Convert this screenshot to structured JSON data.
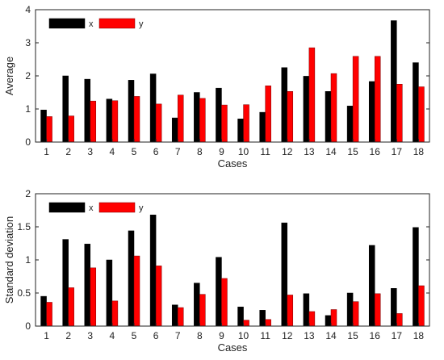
{
  "colors": {
    "x": "#000000",
    "y": "#ff0000",
    "y_stroke": "#7a0000"
  },
  "chart_data": [
    {
      "type": "bar",
      "categories": [
        "1",
        "2",
        "3",
        "4",
        "5",
        "6",
        "7",
        "8",
        "9",
        "10",
        "11",
        "12",
        "13",
        "14",
        "15",
        "16",
        "17",
        "18"
      ],
      "series": [
        {
          "name": "x",
          "values": [
            0.97,
            2.0,
            1.9,
            1.3,
            1.87,
            2.06,
            0.73,
            1.5,
            1.63,
            0.7,
            0.9,
            2.25,
            1.99,
            1.53,
            1.09,
            1.83,
            3.67,
            2.4
          ]
        },
        {
          "name": "y",
          "values": [
            0.77,
            0.79,
            1.24,
            1.25,
            1.38,
            1.15,
            1.42,
            1.32,
            1.12,
            1.13,
            1.7,
            1.53,
            2.85,
            2.07,
            2.59,
            2.59,
            1.75,
            1.67
          ]
        }
      ],
      "xlabel": "Cases",
      "ylabel": "Average",
      "ylim": [
        0,
        4
      ],
      "yticks": [
        "0",
        "1",
        "2",
        "3",
        "4"
      ],
      "legend": "top-left",
      "grid": false
    },
    {
      "type": "bar",
      "categories": [
        "1",
        "2",
        "3",
        "4",
        "5",
        "6",
        "7",
        "8",
        "9",
        "10",
        "11",
        "12",
        "13",
        "14",
        "15",
        "16",
        "17",
        "18"
      ],
      "series": [
        {
          "name": "x",
          "values": [
            0.45,
            1.31,
            1.24,
            1.0,
            1.44,
            1.68,
            0.32,
            0.65,
            1.04,
            0.29,
            0.24,
            1.56,
            0.49,
            0.16,
            0.5,
            1.22,
            0.57,
            1.49
          ]
        },
        {
          "name": "y",
          "values": [
            0.36,
            0.58,
            0.88,
            0.38,
            1.06,
            0.91,
            0.28,
            0.48,
            0.72,
            0.09,
            0.1,
            0.47,
            0.22,
            0.25,
            0.37,
            0.49,
            0.19,
            0.61
          ]
        }
      ],
      "xlabel": "Cases",
      "ylabel": "Standard deviation",
      "ylim": [
        0,
        2
      ],
      "yticks": [
        "0",
        "0.5",
        "1",
        "1.5",
        "2"
      ],
      "legend": "top-left",
      "grid": false
    }
  ]
}
